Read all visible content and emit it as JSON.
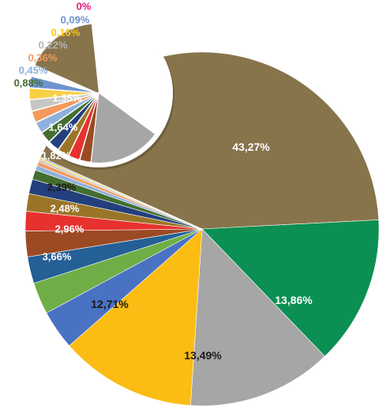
{
  "chart_data": {
    "type": "pie",
    "title": "",
    "slices": [
      {
        "label": "43,27%",
        "value": 43.27,
        "color": "#87744b",
        "label_color": "#ffffff"
      },
      {
        "label": "13,86%",
        "value": 13.86,
        "color": "#0b8f52",
        "label_color": "#ffffff"
      },
      {
        "label": "13,49%",
        "value": 13.49,
        "color": "#a6a6a6",
        "label_color": "#1a1a1a"
      },
      {
        "label": "12,71%",
        "value": 12.71,
        "color": "#fbbc13",
        "label_color": "#1a1a1a"
      },
      {
        "label": "3,66%",
        "value": 3.66,
        "color": "#4a72c3",
        "label_color": "#ffffff"
      },
      {
        "label": "2,96%",
        "value": 2.96,
        "color": "#6fae46",
        "label_color": "#ffffff"
      },
      {
        "label": "2,48%",
        "value": 2.48,
        "color": "#245f96",
        "label_color": "#ffffff"
      },
      {
        "label": "2,39%",
        "value": 2.39,
        "color": "#9c4a24",
        "label_color": "#1a1a1a"
      },
      {
        "label": "1,82%",
        "value": 1.82,
        "color": "#e7312f",
        "label_color": "#ffffff"
      },
      {
        "label": "1,64%",
        "value": 1.64,
        "color": "#9b7527",
        "label_color": "#ffffff"
      },
      {
        "label": "1,35%",
        "value": 1.35,
        "color": "#233f7d",
        "label_color": "#ffffff"
      },
      {
        "label": "0,88%",
        "value": 0.88,
        "color": "#436e2f",
        "label_color": "#436e2f"
      },
      {
        "label": "0,45%",
        "value": 0.45,
        "color": "#8eb1dc",
        "label_color": "#8eb1dc"
      },
      {
        "label": "0,36%",
        "value": 0.36,
        "color": "#f49a5d",
        "label_color": "#f49a5d"
      },
      {
        "label": "0,22%",
        "value": 0.22,
        "color": "#c6c6c6",
        "label_color": "#b5b5b5"
      },
      {
        "label": "0,16%",
        "value": 0.16,
        "color": "#f7d046",
        "label_color": "#f7c51e"
      },
      {
        "label": "0,09%",
        "value": 0.09,
        "color": "#6f93cf",
        "label_color": "#6f93cf"
      },
      {
        "label": "0%",
        "value": 0.0,
        "color": "#e4157f",
        "label_color": "#e4157f"
      }
    ]
  }
}
